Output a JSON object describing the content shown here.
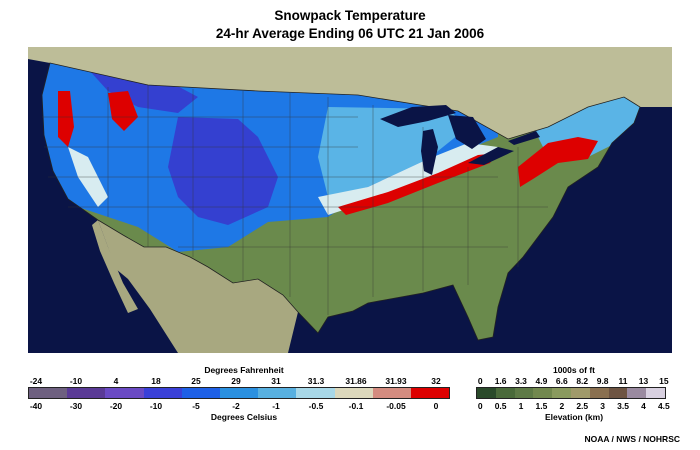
{
  "title_line1": "Snowpack Temperature",
  "title_line2": "24-hr Average Ending 06 UTC  21 Jan 2006",
  "temperature_legend": {
    "fahrenheit_title": "Degrees Fahrenheit",
    "celsius_title": "Degrees Celsius",
    "fahrenheit_ticks": [
      "-24",
      "-10",
      "4",
      "18",
      "25",
      "29",
      "31",
      "31.3",
      "31.86",
      "31.93",
      "32"
    ],
    "celsius_ticks": [
      "-40",
      "-30",
      "-20",
      "-10",
      "-5",
      "-2",
      "-1",
      "-0.5",
      "-0.1",
      "-0.05",
      "0"
    ],
    "colors": [
      "#6e6080",
      "#5a3a96",
      "#6a4ac4",
      "#3a40d8",
      "#1e60e6",
      "#2a90e0",
      "#58b0e0",
      "#a8d8e8",
      "#dcd8bc",
      "#d48c80",
      "#dd0000"
    ]
  },
  "elevation_legend": {
    "feet_title": "1000s of ft",
    "km_title": "Elevation (km)",
    "feet_ticks": [
      "0",
      "1.6",
      "3.3",
      "4.9",
      "6.6",
      "8.2",
      "9.8",
      "11",
      "13",
      "15"
    ],
    "km_ticks": [
      "0",
      "0.5",
      "1",
      "1.5",
      "2",
      "2.5",
      "3",
      "3.5",
      "4",
      "4.5"
    ],
    "colors": [
      "#2a4a2a",
      "#4a6a3a",
      "#5e7a46",
      "#72884e",
      "#8a9a5e",
      "#a09a6a",
      "#8a7050",
      "#6e5442",
      "#9a8aa0",
      "#d8d0e0"
    ]
  },
  "credit": "NOAA / NWS / NOHRSC",
  "map_colors": {
    "ocean": "#0a1446",
    "canada": "#bdbd98",
    "mexico": "#a8a880",
    "bare_ground": "#6a8a4c",
    "coldest_snow": "#3440d0",
    "cold_snow": "#1e78e6",
    "mild_snow": "#5ab4e6",
    "near_melting": "#d8ecf0",
    "melting": "#dd0000"
  }
}
